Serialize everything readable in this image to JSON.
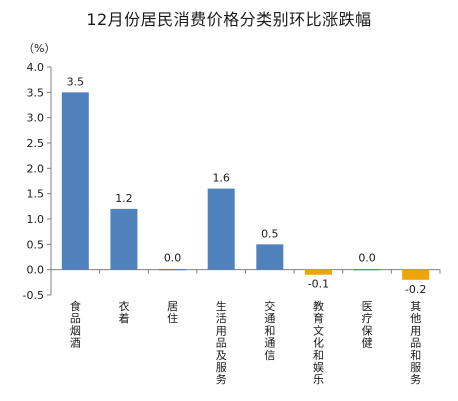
{
  "chart_data": {
    "type": "bar",
    "title": "12月份居民消费价格分类别环比涨跌幅",
    "ylabel": "（%）",
    "xlabel": "",
    "ylim": [
      -0.5,
      4.0
    ],
    "yticks": [
      "4.0",
      "3.5",
      "3.0",
      "2.5",
      "2.0",
      "1.5",
      "1.0",
      "0.5",
      "0.0",
      "-0.5"
    ],
    "yticks_values": [
      4.0,
      3.5,
      3.0,
      2.5,
      2.0,
      1.5,
      1.0,
      0.5,
      0.0,
      -0.5
    ],
    "categories": [
      "食品烟酒",
      "衣着",
      "居住",
      "生活用品及服务",
      "交通和通信",
      "教育文化和娱乐",
      "医疗保健",
      "其他用品和服务"
    ],
    "values": [
      3.5,
      1.2,
      0.0,
      1.6,
      0.5,
      -0.1,
      0.0,
      -0.2
    ],
    "data_labels": [
      "3.5",
      "1.2",
      "0.0",
      "1.6",
      "0.5",
      "-0.1",
      "0.0",
      "-0.2"
    ],
    "grid": false,
    "legend": "none",
    "colors": {
      "positive": "#4f81bd",
      "negative": "#f0a30a",
      "axis": "#808080",
      "text": "#1a1a1a"
    }
  }
}
